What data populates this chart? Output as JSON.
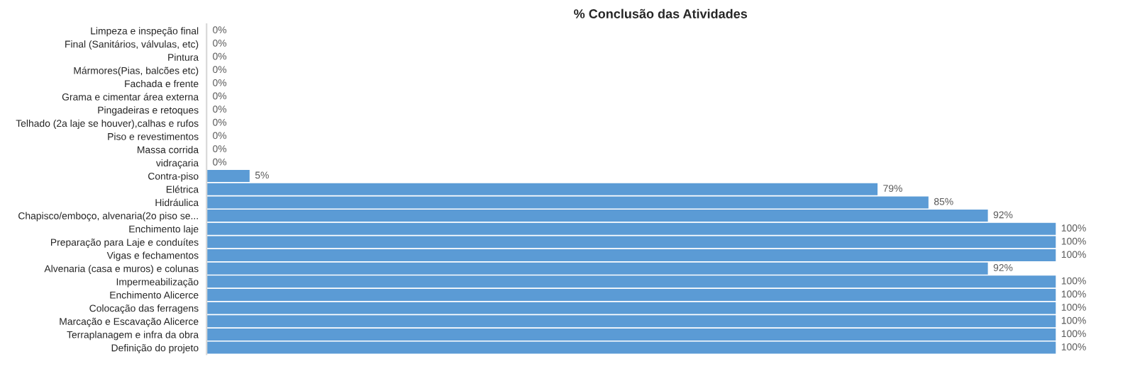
{
  "chart_data": {
    "type": "bar",
    "orientation": "horizontal",
    "title": "% Conclusão das Atividades",
    "categories": [
      "Limpeza e inspeção final",
      "Final (Sanitários, válvulas, etc)",
      "Pintura",
      "Mármores(Pias, balcões etc)",
      "Fachada e frente",
      "Grama e cimentar área externa",
      "Pingadeiras e retoques",
      "Telhado (2a laje se houver),calhas e rufos",
      "Piso e revestimentos",
      "Massa corrida",
      "vidraçaria",
      "Contra-piso",
      "Elétrica",
      "Hidráulica",
      "Chapisco/emboço, alvenaria(2o piso se...",
      "Enchimento laje",
      "Preparação para Laje e conduítes",
      "Vigas e fechamentos",
      "Alvenaria (casa e muros) e colunas",
      "Impermeabilização",
      "Enchimento Alicerce",
      "Colocação das ferragens",
      "Marcação e Escavação Alicerce",
      "Terraplanagem e infra da obra",
      "Definição do projeto"
    ],
    "values": [
      0,
      0,
      0,
      0,
      0,
      0,
      0,
      0,
      0,
      0,
      0,
      5,
      79,
      85,
      92,
      100,
      100,
      100,
      92,
      100,
      100,
      100,
      100,
      100,
      100
    ],
    "value_labels": [
      "0%",
      "0%",
      "0%",
      "0%",
      "0%",
      "0%",
      "0%",
      "0%",
      "0%",
      "0%",
      "0%",
      "5%",
      "79%",
      "85%",
      "92%",
      "100%",
      "100%",
      "100%",
      "92%",
      "100%",
      "100%",
      "100%",
      "100%",
      "100%",
      "100%"
    ],
    "color": "#5b9bd5"
  }
}
